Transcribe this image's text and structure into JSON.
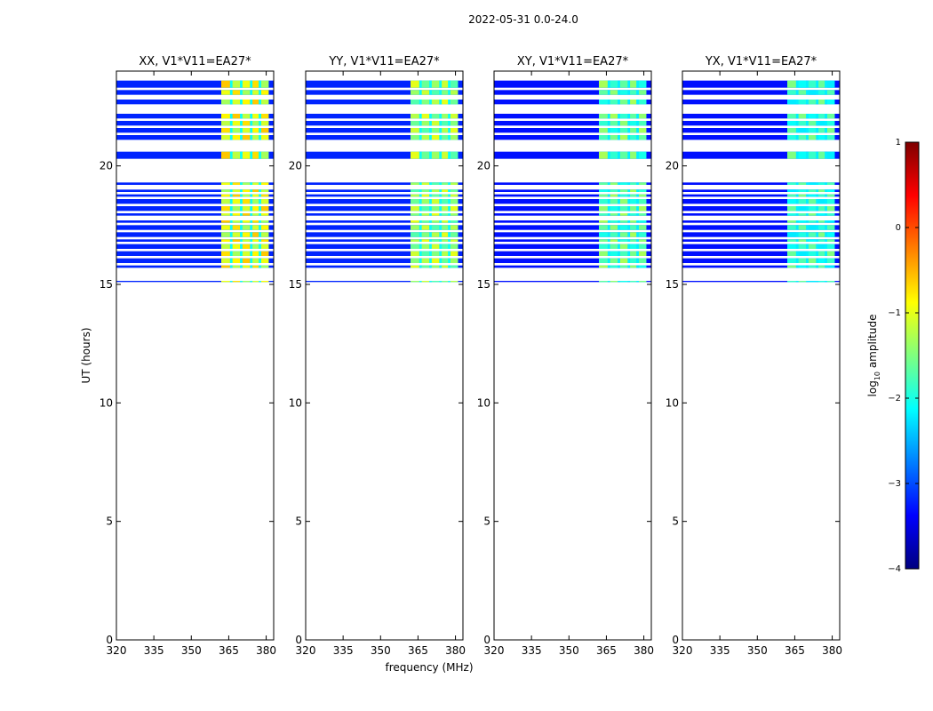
{
  "chart_data": {
    "type": "heatmap",
    "suptitle": "2022-05-31 0.0-24.0",
    "xlabel": "frequency (MHz)",
    "ylabel": "UT (hours)",
    "xlim": [
      320,
      383
    ],
    "ylim": [
      0,
      24
    ],
    "xticks": [
      320,
      335,
      350,
      365,
      380
    ],
    "yticks": [
      0,
      5,
      10,
      15,
      20
    ],
    "colorbar": {
      "label_main": "log",
      "label_sub": "10",
      "label_rest": " amplitude",
      "range": [
        -4,
        1
      ],
      "ticks": [
        1,
        0,
        -1,
        -2,
        -3,
        -4
      ],
      "colormap": [
        "#00007f",
        "#0000ff",
        "#007fff",
        "#00ffff",
        "#7fff7f",
        "#ffff00",
        "#ff7f00",
        "#ff0000",
        "#7f0000"
      ]
    },
    "bands": [
      {
        "y0": 23.3,
        "y1": 23.6
      },
      {
        "y0": 23.0,
        "y1": 23.2
      },
      {
        "y0": 22.6,
        "y1": 22.8
      },
      {
        "y0": 22.0,
        "y1": 22.2
      },
      {
        "y0": 21.7,
        "y1": 21.9
      },
      {
        "y0": 21.4,
        "y1": 21.6
      },
      {
        "y0": 21.1,
        "y1": 21.3
      },
      {
        "y0": 20.3,
        "y1": 20.6
      },
      {
        "y0": 19.2,
        "y1": 19.3
      },
      {
        "y0": 18.9,
        "y1": 19.0
      },
      {
        "y0": 18.7,
        "y1": 18.8
      },
      {
        "y0": 18.4,
        "y1": 18.6
      },
      {
        "y0": 18.1,
        "y1": 18.3
      },
      {
        "y0": 17.9,
        "y1": 18.0
      },
      {
        "y0": 17.6,
        "y1": 17.7
      },
      {
        "y0": 17.3,
        "y1": 17.5
      },
      {
        "y0": 17.0,
        "y1": 17.2
      },
      {
        "y0": 16.8,
        "y1": 16.9
      },
      {
        "y0": 16.5,
        "y1": 16.7
      },
      {
        "y0": 16.2,
        "y1": 16.4
      },
      {
        "y0": 15.9,
        "y1": 16.1
      },
      {
        "y0": 15.7,
        "y1": 15.8
      },
      {
        "y0": 15.1,
        "y1": 15.15
      }
    ],
    "high_freq_start": 362,
    "columns": [
      {
        "f0": 362,
        "f1": 365.5
      },
      {
        "f0": 366.5,
        "f1": 369.5
      },
      {
        "f0": 370.5,
        "f1": 373.5
      },
      {
        "f0": 374.5,
        "f1": 377
      },
      {
        "f0": 378,
        "f1": 381
      }
    ],
    "panels": [
      {
        "title": "XX, V1*V11=EA27*",
        "low_val": -3.2,
        "high_val": -0.6
      },
      {
        "title": "YY, V1*V11=EA27*",
        "low_val": -3.2,
        "high_val": -1.0
      },
      {
        "title": "XY, V1*V11=EA27*",
        "low_val": -3.3,
        "high_val": -1.3
      },
      {
        "title": "YX, V1*V11=EA27*",
        "low_val": -3.3,
        "high_val": -1.5
      }
    ]
  }
}
